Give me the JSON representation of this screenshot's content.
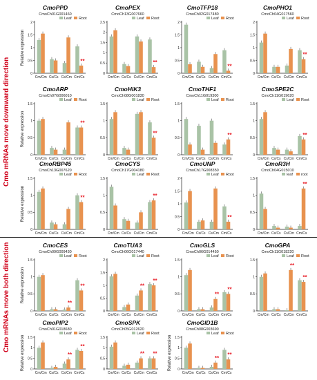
{
  "section_labels": {
    "top": "Cmo mRNAs move downward direction",
    "bottom": "Cmo mRNAs move both direction"
  },
  "colors": {
    "leaf": "#a9c3a6",
    "root": "#e8924f",
    "star": "#e8202a",
    "label": "#d0021b"
  },
  "chart_data": [
    {
      "type": "bar",
      "title": "CmoPPD",
      "subtitle": "CmoCh01G001460",
      "ylabel": "Relative expression",
      "categories": [
        "Cm/Cm",
        "Cs/Cs",
        "Cs/Cm",
        "Cm/Cs"
      ],
      "legend": [
        "Leaf",
        "Root"
      ],
      "ylim": [
        0,
        2
      ],
      "series": [
        {
          "name": "Leaf",
          "values": [
            1.3,
            0.55,
            0.4,
            1.05
          ]
        },
        {
          "name": "Root",
          "values": [
            1.55,
            0.5,
            1.4,
            0.3
          ]
        }
      ],
      "stars": [
        "",
        "",
        "",
        "Root"
      ]
    },
    {
      "type": "bar",
      "title": "CmoPEX",
      "subtitle": "CmoCh13G007660",
      "ylabel": "",
      "categories": [
        "Cm/Cm",
        "Cs/Cs",
        "Cs/Cm",
        "Cm/Cs"
      ],
      "legend": [
        "Leaf",
        "Root"
      ],
      "ylim": [
        0,
        2.5
      ],
      "series": [
        {
          "name": "Leaf",
          "values": [
            1.8,
            0.45,
            1.8,
            1.65
          ]
        },
        {
          "name": "Root",
          "values": [
            2.1,
            0.35,
            1.55,
            0.3
          ]
        }
      ],
      "stars": [
        "",
        "",
        "",
        "Root"
      ]
    },
    {
      "type": "bar",
      "title": "CmoTFP18",
      "subtitle": "CmoCh02G017480",
      "ylabel": "",
      "categories": [
        "Cm/Cm",
        "Cs/Cs",
        "Cs/Cm",
        "Cm/Cs"
      ],
      "legend": [
        "Leaf",
        "Root"
      ],
      "ylim": [
        0,
        2
      ],
      "series": [
        {
          "name": "Leaf",
          "values": [
            1.9,
            0.45,
            0.2,
            0.9
          ]
        },
        {
          "name": "Root",
          "values": [
            0.35,
            0.25,
            0.75,
            0.1
          ]
        }
      ],
      "stars": [
        "",
        "",
        "",
        "Root"
      ]
    },
    {
      "type": "bar",
      "title": "CmoPHO1",
      "subtitle": "CmoCh04G017560",
      "ylabel": "",
      "categories": [
        "Cm/Cm",
        "Cs/Cs",
        "Cs/Cm",
        "Cm/Cs"
      ],
      "legend": [
        "Leaf",
        "Root"
      ],
      "ylim": [
        0,
        2
      ],
      "series": [
        {
          "name": "Leaf",
          "values": [
            1.2,
            0.25,
            0.3,
            0.9
          ]
        },
        {
          "name": "Root",
          "values": [
            1.55,
            0.25,
            0.95,
            0.55
          ]
        }
      ],
      "stars": [
        "",
        "",
        "",
        "Root"
      ]
    },
    {
      "type": "bar",
      "title": "CmoARP",
      "subtitle": "CmoCh07G006010",
      "ylabel": "Relative expression",
      "categories": [
        "Cm/Cm",
        "Cs/Cs",
        "Cs/Cm",
        "Cm/Cs"
      ],
      "legend": [
        "Leaf",
        "Root"
      ],
      "ylim": [
        0,
        1.5
      ],
      "series": [
        {
          "name": "Leaf",
          "values": [
            1.0,
            0.2,
            0.15,
            0.8
          ]
        },
        {
          "name": "Root",
          "values": [
            1.05,
            0.15,
            0.95,
            0.8
          ]
        }
      ],
      "stars": [
        "",
        "",
        "",
        "Root"
      ]
    },
    {
      "type": "bar",
      "title": "CmoHIK3",
      "subtitle": "CmoCh08G001830",
      "ylabel": "",
      "categories": [
        "Cm/Cm",
        "Cs/Cs",
        "Cs/Cm",
        "Cm/Cs"
      ],
      "legend": [
        "Leaf",
        "Root"
      ],
      "ylim": [
        0,
        1.5
      ],
      "series": [
        {
          "name": "Leaf",
          "values": [
            1.05,
            0.2,
            1.2,
            0.95
          ]
        },
        {
          "name": "Root",
          "values": [
            1.25,
            0.15,
            1.25,
            0.5
          ]
        }
      ],
      "stars": [
        "",
        "",
        "",
        "Root"
      ]
    },
    {
      "type": "bar",
      "title": "CmoTHF1",
      "subtitle": "CmoCh11G019300",
      "ylabel": "",
      "categories": [
        "Cm/Cm",
        "Cs/Cs",
        "Cs/Cm",
        "Cm/Cs"
      ],
      "legend": [
        "Leaf",
        "Root"
      ],
      "ylim": [
        0,
        1.5
      ],
      "series": [
        {
          "name": "Leaf",
          "values": [
            1.05,
            0.85,
            1.0,
            0.3
          ]
        },
        {
          "name": "Root",
          "values": [
            0.3,
            0.15,
            0.35,
            0.45
          ]
        }
      ],
      "stars": [
        "",
        "",
        "",
        "Root"
      ]
    },
    {
      "type": "bar",
      "title": "CmoSPE2C",
      "subtitle": "CmoCh11G019620",
      "ylabel": "",
      "categories": [
        "Cm/Cm",
        "Cs/Cs",
        "Cs/Cm",
        "Cm/Cs"
      ],
      "legend": [
        "Leaf",
        "Root"
      ],
      "ylim": [
        0,
        1.5
      ],
      "series": [
        {
          "name": "Leaf",
          "values": [
            1.05,
            0.2,
            0.15,
            0.55
          ]
        },
        {
          "name": "Root",
          "values": [
            1.25,
            0.15,
            0.1,
            0.45
          ]
        }
      ],
      "stars": [
        "",
        "",
        "",
        "Root"
      ]
    },
    {
      "type": "bar",
      "title": "CmoRBP45",
      "subtitle": "CmoCh13G007620",
      "ylabel": "Relative expression",
      "categories": [
        "Cm/Cm",
        "Cs/Cs",
        "Cs/Cm",
        "Cm/Cs"
      ],
      "legend": [
        "Leaf",
        "Root"
      ],
      "ylim": [
        0,
        1.5
      ],
      "series": [
        {
          "name": "Leaf",
          "values": [
            1.1,
            0.2,
            0.15,
            1.0
          ]
        },
        {
          "name": "Root",
          "values": [
            1.2,
            0.15,
            0.6,
            0.8
          ]
        }
      ],
      "stars": [
        "",
        "",
        "",
        "Root"
      ]
    },
    {
      "type": "bar",
      "title": "CmoCYS",
      "subtitle": "CmoCh17G004180",
      "ylabel": "",
      "categories": [
        "Cm/Cm",
        "Cs/Cs",
        "Cs/Cm",
        "Cm/Cs"
      ],
      "legend": [
        "Leaf",
        "Root"
      ],
      "ylim": [
        0,
        1.5
      ],
      "series": [
        {
          "name": "Leaf",
          "values": [
            1.25,
            0.3,
            0.2,
            0.8
          ]
        },
        {
          "name": "Root",
          "values": [
            0.7,
            0.25,
            0.5,
            0.85
          ]
        }
      ],
      "stars": [
        "",
        "",
        "",
        "Root"
      ]
    },
    {
      "type": "bar",
      "title": "CmoUNP",
      "subtitle": "CmoCh17G008350",
      "ylabel": "",
      "categories": [
        "Cm/Cm",
        "Cs/Cs",
        "Cs/Cm",
        "Cm/Cs"
      ],
      "legend": [
        "Leaf",
        "Root"
      ],
      "ylim": [
        0,
        2
      ],
      "series": [
        {
          "name": "Leaf",
          "values": [
            1.05,
            0.3,
            0.3,
            0.9
          ]
        },
        {
          "name": "Root",
          "values": [
            1.5,
            0.35,
            1.6,
            0.3
          ]
        }
      ],
      "stars": [
        "",
        "",
        "",
        "Root"
      ]
    },
    {
      "type": "bar",
      "title": "CmoR3H",
      "subtitle": "CmoCh04G015010",
      "ylabel": "",
      "categories": [
        "Cm/Cm",
        "Cs/Cs",
        "Cs/Cm",
        "Cm/Cs"
      ],
      "legend": [
        "leaf",
        "root"
      ],
      "ylim": [
        0,
        1.5
      ],
      "series": [
        {
          "name": "leaf",
          "values": [
            1.05,
            0.1,
            0.08,
            0.1
          ]
        },
        {
          "name": "root",
          "values": [
            0.6,
            0.05,
            0.05,
            1.2
          ]
        }
      ],
      "stars": [
        "",
        "",
        "",
        "root"
      ]
    },
    {
      "type": "bar",
      "title": "CmoCES",
      "subtitle": "CmoCh09G009430",
      "ylabel": "Relative expression",
      "categories": [
        "Cm/Cm",
        "Cs/Cs",
        "Cs/Cm",
        "Cm/Cs"
      ],
      "legend": [
        "Leaf",
        "Root"
      ],
      "ylim": [
        0,
        1.5
      ],
      "series": [
        {
          "name": "Leaf",
          "values": [
            1.0,
            0.05,
            0.04,
            0.9
          ]
        },
        {
          "name": "Root",
          "values": [
            1.05,
            0.05,
            0.1,
            0.6
          ]
        }
      ],
      "stars": [
        "",
        "",
        "Root",
        "Root"
      ]
    },
    {
      "type": "bar",
      "title": "CmoTUA3",
      "subtitle": "CmoCh06G017440",
      "ylabel": "",
      "categories": [
        "Cm/Cm",
        "Cs/Cs",
        "Cs/Cm",
        "Cm/Cs"
      ],
      "legend": [
        "Leaf",
        "Root"
      ],
      "ylim": [
        0,
        2
      ],
      "series": [
        {
          "name": "Leaf",
          "values": [
            1.35,
            0.15,
            0.6,
            1.05
          ]
        },
        {
          "name": "Root",
          "values": [
            1.45,
            0.25,
            0.8,
            1.0
          ]
        }
      ],
      "stars": [
        "",
        "",
        "Root",
        "Root"
      ]
    },
    {
      "type": "bar",
      "title": "CmoGLS",
      "subtitle": "CmoCh06G014450",
      "ylabel": "",
      "categories": [
        "Cm/Cm",
        "Cs/Cs",
        "Cs/Cm",
        "Cm/Cs"
      ],
      "legend": [
        "Leaf",
        "Root"
      ],
      "ylim": [
        0,
        1.5
      ],
      "series": [
        {
          "name": "Leaf",
          "values": [
            1.05,
            0.05,
            0.1,
            0.55
          ]
        },
        {
          "name": "Root",
          "values": [
            1.2,
            0.05,
            0.35,
            0.5
          ]
        }
      ],
      "stars": [
        "",
        "",
        "Root",
        "Root"
      ]
    },
    {
      "type": "bar",
      "title": "CmoGPA",
      "subtitle": "CmoCh11G018220",
      "ylabel": "",
      "categories": [
        "Cm/Cm",
        "Cs/Cs",
        "Cs/Cm",
        "Cm/Cs"
      ],
      "legend": [
        "Leaf",
        "Root"
      ],
      "ylim": [
        0,
        1.5
      ],
      "series": [
        {
          "name": "Leaf",
          "values": [
            1.0,
            0.05,
            0.02,
            0.9
          ]
        },
        {
          "name": "Root",
          "values": [
            1.1,
            0.05,
            1.2,
            0.85
          ]
        }
      ],
      "stars": [
        "",
        "",
        "Root",
        "Root"
      ]
    },
    {
      "type": "bar",
      "title": "CmoPIP2",
      "subtitle": "CmoCh01G018680",
      "ylabel": "Relative expression",
      "categories": [
        "Cm/Cm",
        "Cs/Cs",
        "Cs/Cm",
        "Cm/Cs"
      ],
      "legend": [
        "Leaf",
        "Root"
      ],
      "ylim": [
        0,
        1.5
      ],
      "series": [
        {
          "name": "Leaf",
          "values": [
            1.0,
            0.05,
            0.25,
            0.9
          ]
        },
        {
          "name": "Root",
          "values": [
            1.25,
            0.1,
            0.45,
            0.85
          ]
        }
      ],
      "stars": [
        "",
        "",
        "Root",
        "Root"
      ]
    },
    {
      "type": "bar",
      "title": "CmoSPK",
      "subtitle": "CmoCh05G012620",
      "ylabel": "",
      "categories": [
        "Cm/Cm",
        "Cs/Cs",
        "Cs/Cm",
        "Cm/Cs"
      ],
      "legend": [
        "Leaf",
        "Root"
      ],
      "ylim": [
        0,
        1.5
      ],
      "series": [
        {
          "name": "Leaf",
          "values": [
            1.05,
            0.15,
            0.3,
            0.5
          ]
        },
        {
          "name": "Root",
          "values": [
            1.25,
            0.2,
            0.5,
            0.5
          ]
        }
      ],
      "stars": [
        "",
        "",
        "Root",
        "Root"
      ]
    },
    {
      "type": "bar",
      "title": "CmoGID1B",
      "subtitle": "CmoCh08G003690",
      "ylabel": "Relative expression",
      "categories": [
        "Cm/Cm",
        "Cs/Cs",
        "Cs/Cm",
        "Cm/Cs"
      ],
      "legend": [
        "Leaf",
        "Root"
      ],
      "ylim": [
        0,
        1.5
      ],
      "series": [
        {
          "name": "Leaf",
          "values": [
            1.0,
            0.05,
            0.1,
            0.9
          ]
        },
        {
          "name": "Root",
          "values": [
            1.2,
            0.05,
            0.3,
            0.45
          ]
        }
      ],
      "stars": [
        "",
        "",
        "Root",
        "Root"
      ]
    }
  ]
}
